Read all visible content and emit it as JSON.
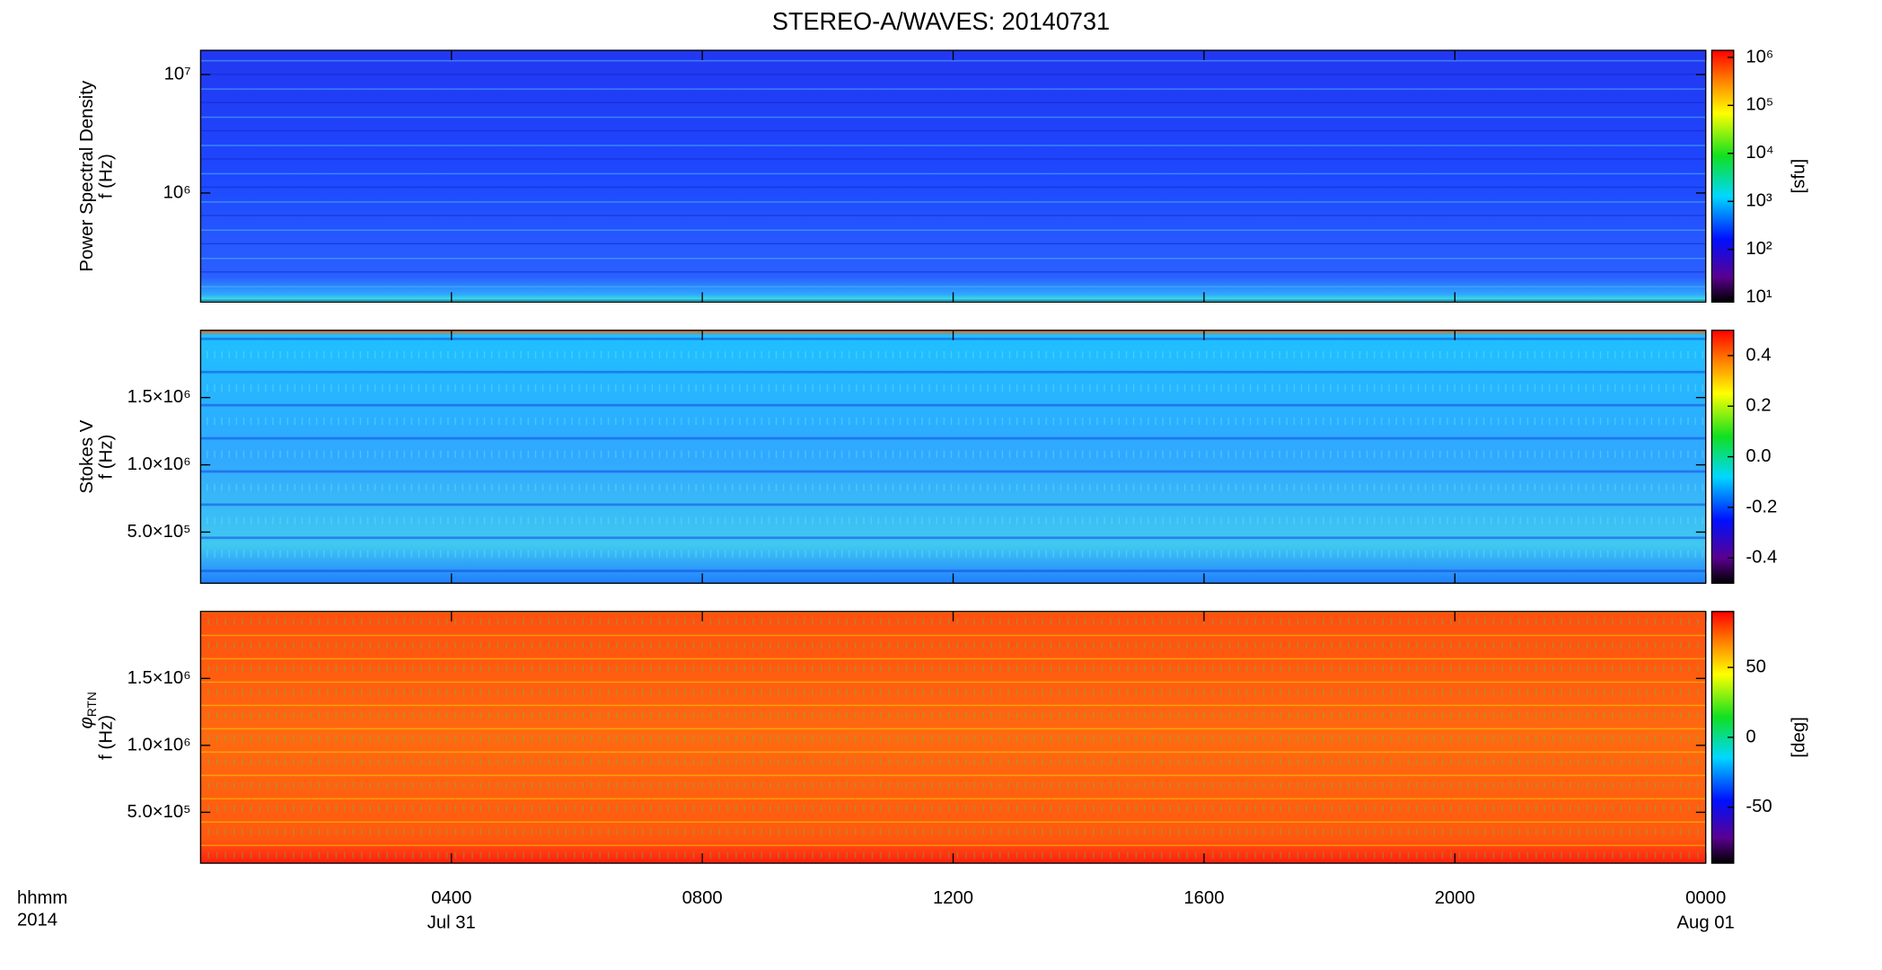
{
  "title": "STEREO-A/WAVES: 20140731",
  "x_axis": {
    "label_lines": [
      "hhmm",
      "2014"
    ],
    "xlim": [
      0,
      24
    ],
    "xticks": [
      {
        "value": 4,
        "label": "0400"
      },
      {
        "value": 8,
        "label": "0800"
      },
      {
        "value": 12,
        "label": "1200"
      },
      {
        "value": 16,
        "label": "1600"
      },
      {
        "value": 20,
        "label": "2000"
      },
      {
        "value": 24,
        "label": "0000"
      }
    ],
    "date_labels": [
      {
        "value": 4,
        "label": "Jul 31"
      },
      {
        "value": 24,
        "label": "Aug 01"
      }
    ]
  },
  "chart_data": [
    {
      "type": "heatmap",
      "ylabel": [
        "Power Spectral Density",
        "f (Hz)"
      ],
      "ylog": true,
      "ylim": [
        120000,
        16000000
      ],
      "yticks": [
        {
          "value": 1000000,
          "label": "10⁶"
        },
        {
          "value": 10000000,
          "label": "10⁷"
        }
      ],
      "colorbar": {
        "log": true,
        "lim": [
          8,
          1400000
        ],
        "label": "[sfu]",
        "ticks": [
          {
            "value": 10,
            "label": "10¹"
          },
          {
            "value": 100,
            "label": "10²"
          },
          {
            "value": 1000,
            "label": "10³"
          },
          {
            "value": 10000,
            "label": "10⁴"
          },
          {
            "value": 100000,
            "label": "10⁵"
          },
          {
            "value": 1000000,
            "label": "10⁶"
          }
        ]
      }
    },
    {
      "type": "heatmap",
      "ylabel": [
        "Stokes V",
        "f (Hz)"
      ],
      "ylog": false,
      "ylim": [
        120000,
        2000000
      ],
      "yticks": [
        {
          "value": 500000,
          "label": "5.0×10⁵"
        },
        {
          "value": 1000000,
          "label": "1.0×10⁶"
        },
        {
          "value": 1500000,
          "label": "1.5×10⁶"
        }
      ],
      "colorbar": {
        "log": false,
        "lim": [
          -0.5,
          0.5
        ],
        "ticks": [
          -0.4,
          -0.2,
          {
            "value": 0,
            "label": "0.0"
          },
          0.2,
          0.4
        ]
      }
    },
    {
      "type": "heatmap",
      "ylabel": [
        "f (Hz)"
      ],
      "ylabel_symbol": "φ",
      "ylabel_subscript": "RTN",
      "ylog": false,
      "ylim": [
        120000,
        2000000
      ],
      "yticks": [
        {
          "value": 500000,
          "label": "5.0×10⁵"
        },
        {
          "value": 1000000,
          "label": "1.0×10⁶"
        },
        {
          "value": 1500000,
          "label": "1.5×10⁶"
        }
      ],
      "colorbar": {
        "log": false,
        "lim": [
          -90,
          90
        ],
        "label": "[deg]",
        "ticks": [
          -50,
          0,
          50
        ]
      }
    }
  ]
}
